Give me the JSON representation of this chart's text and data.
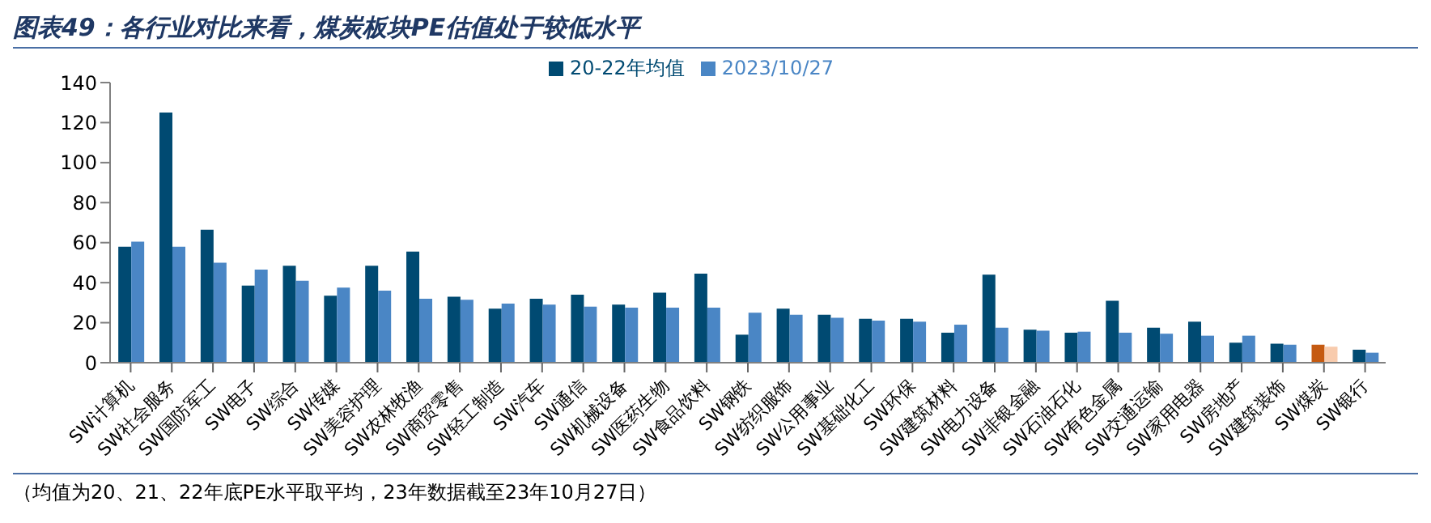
{
  "chart_data": {
    "type": "bar",
    "title": "图表49：各行业对比来看，煤炭板块PE估值处于较低水平",
    "categories": [
      "SW计算机",
      "SW社会服务",
      "SW国防军工",
      "SW电子",
      "SW综合",
      "SW传媒",
      "SW美容护理",
      "SW农林牧渔",
      "SW商贸零售",
      "SW轻工制造",
      "SW汽车",
      "SW通信",
      "SW机械设备",
      "SW医药生物",
      "SW食品饮料",
      "SW钢铁",
      "SW纺织服饰",
      "SW公用事业",
      "SW基础化工",
      "SW环保",
      "SW建筑材料",
      "SW电力设备",
      "SW非银金融",
      "SW石油石化",
      "SW有色金属",
      "SW交通运输",
      "SW家用电器",
      "SW房地产",
      "SW建筑装饰",
      "SW煤炭",
      "SW银行"
    ],
    "series": [
      {
        "name": "20-22年均值",
        "color": "#004a72",
        "colors": [
          "#004a72",
          "#004a72",
          "#004a72",
          "#004a72",
          "#004a72",
          "#004a72",
          "#004a72",
          "#004a72",
          "#004a72",
          "#004a72",
          "#004a72",
          "#004a72",
          "#004a72",
          "#004a72",
          "#004a72",
          "#004a72",
          "#004a72",
          "#004a72",
          "#004a72",
          "#004a72",
          "#004a72",
          "#004a72",
          "#004a72",
          "#004a72",
          "#004a72",
          "#004a72",
          "#004a72",
          "#004a72",
          "#004a72",
          "#c55a11",
          "#004a72"
        ],
        "values": [
          58,
          125,
          66.5,
          38.5,
          48.5,
          33.5,
          48.5,
          55.5,
          33,
          27,
          32,
          34,
          29,
          35,
          44.5,
          14,
          27,
          24,
          22,
          22,
          15,
          44,
          16.5,
          15,
          31,
          17.5,
          20.5,
          10,
          9.5,
          9,
          6.5
        ]
      },
      {
        "name": "2023/10/27",
        "color": "#4a86c5",
        "colors": [
          "#4a86c5",
          "#4a86c5",
          "#4a86c5",
          "#4a86c5",
          "#4a86c5",
          "#4a86c5",
          "#4a86c5",
          "#4a86c5",
          "#4a86c5",
          "#4a86c5",
          "#4a86c5",
          "#4a86c5",
          "#4a86c5",
          "#4a86c5",
          "#4a86c5",
          "#4a86c5",
          "#4a86c5",
          "#4a86c5",
          "#4a86c5",
          "#4a86c5",
          "#4a86c5",
          "#4a86c5",
          "#4a86c5",
          "#4a86c5",
          "#4a86c5",
          "#4a86c5",
          "#4a86c5",
          "#4a86c5",
          "#4a86c5",
          "#f8cbad",
          "#4a86c5"
        ],
        "values": [
          60.5,
          58,
          50,
          46.5,
          41,
          37.5,
          36,
          32,
          31.5,
          29.5,
          29,
          28,
          27.5,
          27.5,
          27.5,
          25,
          24,
          22.5,
          21,
          20.5,
          19,
          17.5,
          16,
          15.5,
          15,
          14.5,
          13.5,
          13.5,
          9,
          8,
          5
        ]
      }
    ],
    "ylim": [
      0,
      140
    ],
    "yticks": [
      0,
      20,
      40,
      60,
      80,
      100,
      120,
      140
    ],
    "legend": "top",
    "annotations": [
      "（均值为20、21、22年底PE水平取平均，23年数据截至23年10月27日）"
    ]
  }
}
